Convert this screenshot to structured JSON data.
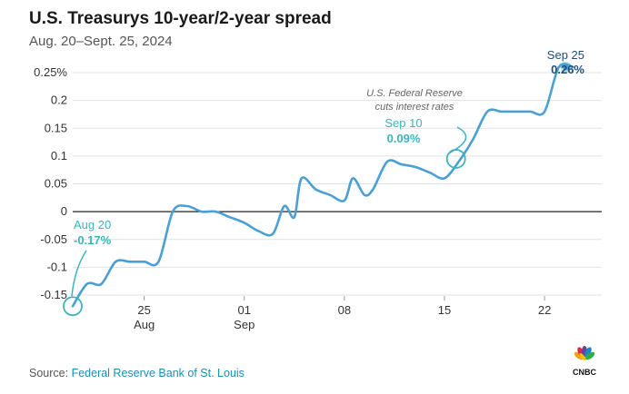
{
  "chart_data": {
    "type": "line",
    "title": "U.S. Treasurys 10-year/2-year spread",
    "subtitle": "Aug. 20–Sept. 25, 2024",
    "x_day_range": [
      20,
      57
    ],
    "ylim": [
      -0.15,
      0.25
    ],
    "y_ticks": [
      {
        "value": 0.25,
        "label": "0.25%"
      },
      {
        "value": 0.2,
        "label": "0.2"
      },
      {
        "value": 0.15,
        "label": "0.15"
      },
      {
        "value": 0.1,
        "label": "0.1"
      },
      {
        "value": 0.05,
        "label": "0.05"
      },
      {
        "value": 0,
        "label": "0"
      },
      {
        "value": -0.05,
        "label": "-0.05"
      },
      {
        "value": -0.1,
        "label": "-0.1"
      },
      {
        "value": -0.15,
        "label": "-0.15"
      }
    ],
    "x_ticks": [
      {
        "day": 25,
        "label": "25",
        "sublabel": "Aug"
      },
      {
        "day": 32,
        "label": "01",
        "sublabel": "Sep"
      },
      {
        "day": 39,
        "label": "08",
        "sublabel": ""
      },
      {
        "day": 46,
        "label": "15",
        "sublabel": ""
      },
      {
        "day": 53,
        "label": "22",
        "sublabel": ""
      }
    ],
    "series": [
      {
        "name": "10-year/2-year spread (%)",
        "color": "#4a9fd4",
        "points": [
          [
            20,
            -0.17
          ],
          [
            21,
            -0.13
          ],
          [
            22,
            -0.13
          ],
          [
            23,
            -0.09
          ],
          [
            24,
            -0.09
          ],
          [
            25,
            -0.09
          ],
          [
            26,
            -0.09
          ],
          [
            27,
            0.0
          ],
          [
            28,
            0.01
          ],
          [
            29,
            0.0
          ],
          [
            30,
            0.0
          ],
          [
            31,
            -0.01
          ],
          [
            32,
            -0.02
          ],
          [
            33,
            -0.035
          ],
          [
            34,
            -0.04
          ],
          [
            34.8,
            0.01
          ],
          [
            35.5,
            -0.01
          ],
          [
            36,
            0.06
          ],
          [
            37,
            0.04
          ],
          [
            38,
            0.03
          ],
          [
            39,
            0.02
          ],
          [
            39.6,
            0.06
          ],
          [
            40.4,
            0.03
          ],
          [
            41,
            0.04
          ],
          [
            42,
            0.09
          ],
          [
            43,
            0.085
          ],
          [
            44,
            0.08
          ],
          [
            45,
            0.07
          ],
          [
            46,
            0.06
          ],
          [
            47,
            0.09
          ],
          [
            48,
            0.13
          ],
          [
            49,
            0.18
          ],
          [
            50,
            0.18
          ],
          [
            51,
            0.18
          ],
          [
            52,
            0.18
          ],
          [
            53,
            0.18
          ],
          [
            54,
            0.26
          ],
          [
            55,
            0.26
          ]
        ]
      }
    ],
    "annotations": [
      {
        "label": "Aug 20",
        "value": "-0.17%",
        "color": "#3ab5bd",
        "at_day": 20,
        "at_value": -0.17
      },
      {
        "label": "Sep 10",
        "value": "0.09%",
        "color": "#3ab5bd",
        "at_day": 47,
        "at_value": 0.09
      },
      {
        "label": "Sep 25",
        "value": "0.26%",
        "color": "#1f4e79",
        "at_day": 55,
        "at_value": 0.26
      }
    ],
    "note_lines": [
      "U.S. Federal Reserve",
      "cuts interest rates"
    ]
  },
  "footer": {
    "source_prefix": "Source: ",
    "source_name": "Federal Reserve Bank of St. Louis",
    "logo_text": "CNBC"
  },
  "colors": {
    "line": "#4a9fd4",
    "highlight": "#3ab5bd",
    "end_marker": "#1f4e79",
    "grid": "#e2e2e2",
    "zero_line": "#222222"
  }
}
